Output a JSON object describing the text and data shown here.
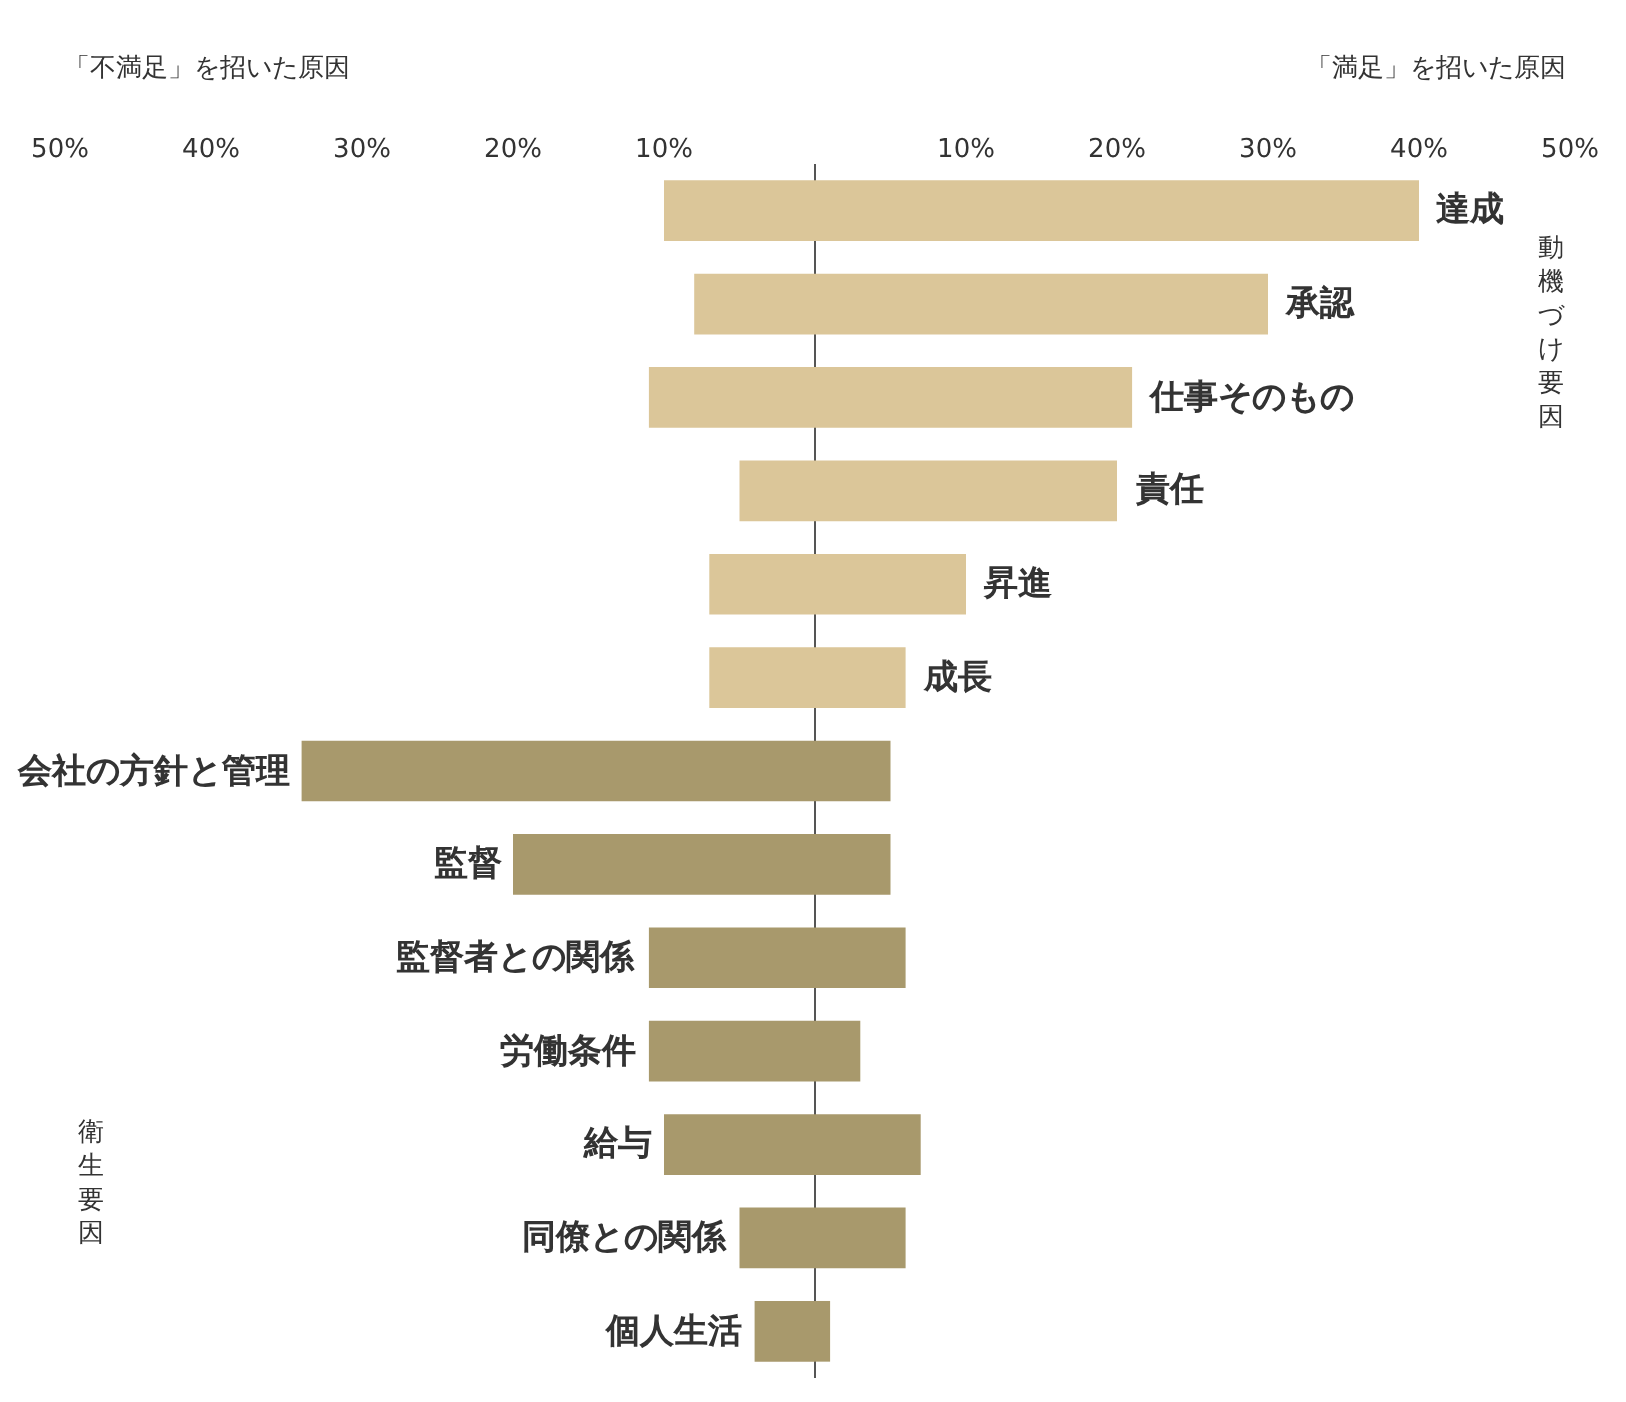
{
  "chart_data": {
    "type": "bar",
    "orientation": "horizontal",
    "stacked": true,
    "categories": [
      "達成",
      "承認",
      "仕事そのもの",
      "責任",
      "昇進",
      "成長",
      "会社の方針と管理",
      "監督",
      "監督者との関係",
      "労働条件",
      "給与",
      "同僚との関係",
      "個人生活"
    ],
    "series": [
      {
        "color": "#dbc699",
        "values": [
          -10,
          -8,
          -11,
          -5,
          -7,
          -7,
          null,
          null,
          null,
          null,
          null,
          null,
          null
        ]
      },
      {
        "color": "#dbc699",
        "values": [
          40,
          30,
          21,
          20,
          10,
          6,
          null,
          null,
          null,
          null,
          null,
          null,
          null
        ]
      },
      {
        "color": "#a8996c",
        "values": [
          null,
          null,
          null,
          null,
          null,
          null,
          5,
          5,
          6,
          3,
          7,
          6,
          1
        ]
      },
      {
        "color": "#a8996c",
        "values": [
          null,
          null,
          null,
          null,
          null,
          null,
          -34,
          -20,
          -11,
          -11,
          -10,
          -5,
          -4
        ]
      }
    ],
    "xlim": [
      -50,
      50
    ],
    "xticks": [
      {
        "value": -50,
        "label": "50%"
      },
      {
        "value": -40,
        "label": "40%"
      },
      {
        "value": -30,
        "label": "30%"
      },
      {
        "value": -20,
        "label": "20%"
      },
      {
        "value": -10,
        "label": "10%"
      },
      {
        "value": 10,
        "label": "10%"
      },
      {
        "value": 20,
        "label": "20%"
      },
      {
        "value": 30,
        "label": "30%"
      },
      {
        "value": 40,
        "label": "40%"
      },
      {
        "value": 50,
        "label": "50%"
      }
    ],
    "grid": false,
    "annotations": [
      "「不満足」を招いた原因",
      "「満足」を招いた原因",
      "動機づけ要因",
      "衛生要因"
    ]
  }
}
